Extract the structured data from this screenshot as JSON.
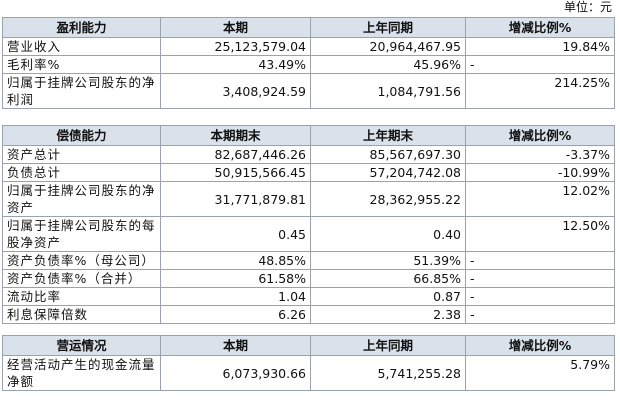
{
  "unit": "单位：元",
  "sections": [
    {
      "header": [
        "盈利能力",
        "本期",
        "上年同期",
        "增减比例%"
      ],
      "rows": [
        [
          "营业收入",
          "25,123,579.04",
          "20,964,467.95",
          "19.84%"
        ],
        [
          "毛利率%",
          "43.49%",
          "45.96%",
          "-"
        ],
        [
          "归属于挂牌公司股东的净利润",
          "3,408,924.59",
          "1,084,791.56",
          "214.25%"
        ]
      ]
    },
    {
      "header": [
        "偿债能力",
        "本期期末",
        "上年期末",
        "增减比例%"
      ],
      "rows": [
        [
          "资产总计",
          "82,687,446.26",
          "85,567,697.30",
          "-3.37%"
        ],
        [
          "负债总计",
          "50,915,566.45",
          "57,204,742.08",
          "-10.99%"
        ],
        [
          "归属于挂牌公司股东的净资产",
          "31,771,879.81",
          "28,362,955.22",
          "12.02%"
        ],
        [
          "归属于挂牌公司股东的每股净资产",
          "0.45",
          "0.40",
          "12.50%"
        ],
        [
          "资产负债率%（母公司）",
          "48.85%",
          "51.39%",
          "-"
        ],
        [
          "资产负债率%（合并）",
          "61.58%",
          "66.85%",
          "-"
        ],
        [
          "流动比率",
          "1.04",
          "0.87",
          "-"
        ],
        [
          "利息保障倍数",
          "6.26",
          "2.38",
          "-"
        ]
      ]
    },
    {
      "header": [
        "营运情况",
        "本期",
        "上年同期",
        "增减比例%"
      ],
      "rows": [
        [
          "经营活动产生的现金流量净额",
          "6,073,930.66",
          "5,741,255.28",
          "5.79%"
        ]
      ]
    }
  ]
}
